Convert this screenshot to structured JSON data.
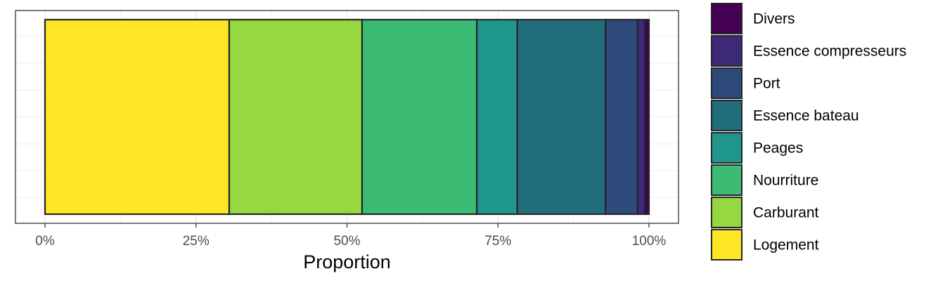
{
  "chart_data": {
    "type": "bar",
    "orientation": "horizontal",
    "stacked": true,
    "xlabel": "Proportion",
    "ylabel": "",
    "xlim": [
      0,
      1
    ],
    "xticks": [
      0,
      0.25,
      0.5,
      0.75,
      1
    ],
    "xtick_labels": [
      "0%",
      "25%",
      "50%",
      "75%",
      "100%"
    ],
    "grid": true,
    "legend_position": "right",
    "series": [
      {
        "name": "Logement",
        "value": 0.305,
        "color": "#FDE725"
      },
      {
        "name": "Carburant",
        "value": 0.22,
        "color": "#95D840"
      },
      {
        "name": "Nourriture",
        "value": 0.19,
        "color": "#3CBB75"
      },
      {
        "name": "Peages",
        "value": 0.067,
        "color": "#1F968B"
      },
      {
        "name": "Essence bateau",
        "value": 0.146,
        "color": "#226D7C"
      },
      {
        "name": "Port",
        "value": 0.053,
        "color": "#2D4A7B"
      },
      {
        "name": "Essence compresseurs",
        "value": 0.012,
        "color": "#3C2A78"
      },
      {
        "name": "Divers",
        "value": 0.007,
        "color": "#440154"
      }
    ],
    "legend_order": [
      "Divers",
      "Essence compresseurs",
      "Port",
      "Essence bateau",
      "Peages",
      "Nourriture",
      "Carburant",
      "Logement"
    ]
  }
}
